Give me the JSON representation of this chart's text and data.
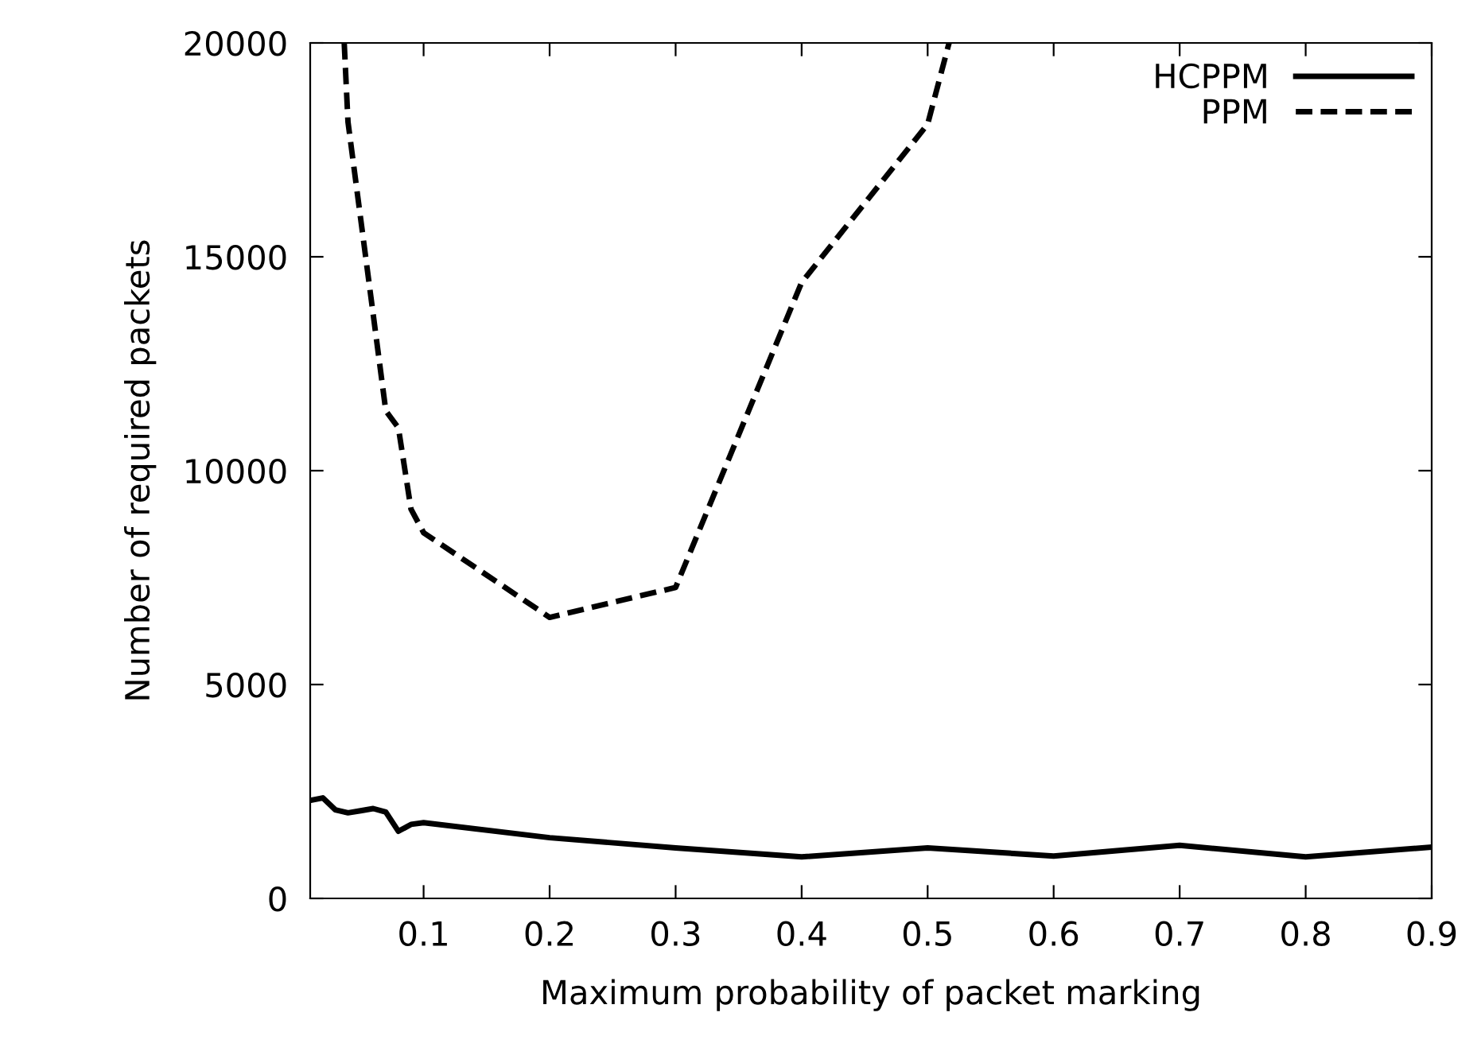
{
  "chart_data": {
    "type": "line",
    "xlabel": "Maximum probability of packet marking",
    "ylabel": "Number of required packets",
    "xlim": [
      0.01,
      0.9
    ],
    "xticks": [
      0.1,
      0.2,
      0.3,
      0.4,
      0.5,
      0.6,
      0.7,
      0.8,
      0.9
    ],
    "ylim": [
      0,
      20000
    ],
    "yticks": [
      0,
      5000,
      10000,
      15000,
      20000
    ],
    "grid": false,
    "legend": "top right",
    "marker": "none",
    "series": [
      {
        "name": "HCPPM",
        "color": "#000000",
        "line_style": "solid",
        "x": [
          0.01,
          0.02,
          0.03,
          0.04,
          0.05,
          0.06,
          0.07,
          0.08,
          0.09,
          0.1,
          0.2,
          0.3,
          0.4,
          0.5,
          0.6,
          0.7,
          0.8,
          0.9
        ],
        "values": [
          2290,
          2350,
          2070,
          2000,
          2050,
          2100,
          2020,
          1570,
          1730,
          1770,
          1420,
          1180,
          970,
          1180,
          990,
          1240,
          970,
          1200
        ]
      },
      {
        "name": "PPM",
        "color": "#000000",
        "line_style": "dashed",
        "x": [
          0.037,
          0.04,
          0.07,
          0.08,
          0.09,
          0.1,
          0.2,
          0.3,
          0.4,
          0.5,
          0.517
        ],
        "values": [
          20000,
          18150,
          11400,
          11000,
          9100,
          8550,
          6570,
          7270,
          14400,
          18100,
          20000
        ]
      }
    ]
  }
}
